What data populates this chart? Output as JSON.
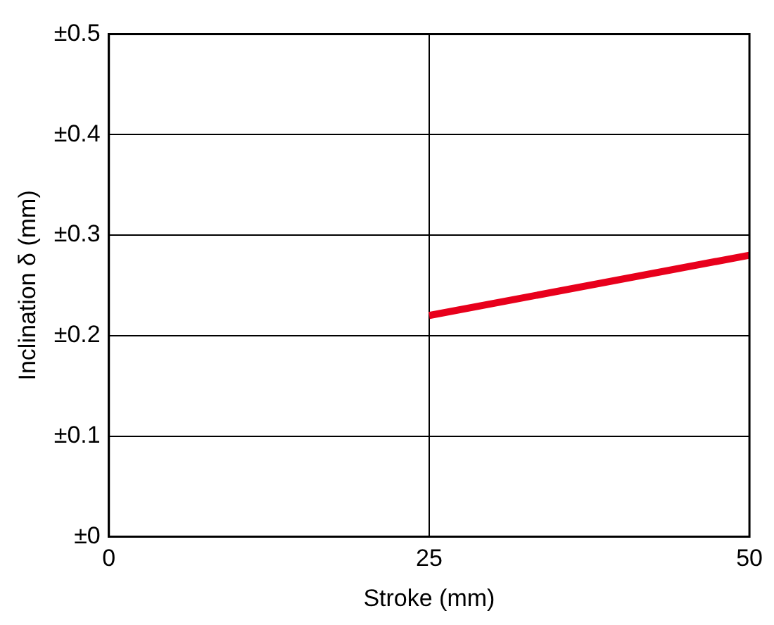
{
  "chart_data": {
    "type": "line",
    "xlabel": "Stroke (mm)",
    "ylabel": "Inclination δ (mm)",
    "xlim": [
      0,
      50
    ],
    "xticks": [
      0,
      25,
      50
    ],
    "ylim": [
      0,
      0.5
    ],
    "yticks": [
      {
        "value": 0,
        "label": "±0"
      },
      {
        "value": 0.1,
        "label": "±0.1"
      },
      {
        "value": 0.2,
        "label": "±0.2"
      },
      {
        "value": 0.3,
        "label": "±0.3"
      },
      {
        "value": 0.4,
        "label": "±0.4"
      },
      {
        "value": 0.5,
        "label": "±0.5"
      }
    ],
    "grid": true,
    "marker": "none",
    "line_style": "solid",
    "series": [
      {
        "color": "#e8001c",
        "x": [
          25,
          50
        ],
        "values": [
          0.22,
          0.28
        ]
      }
    ]
  }
}
